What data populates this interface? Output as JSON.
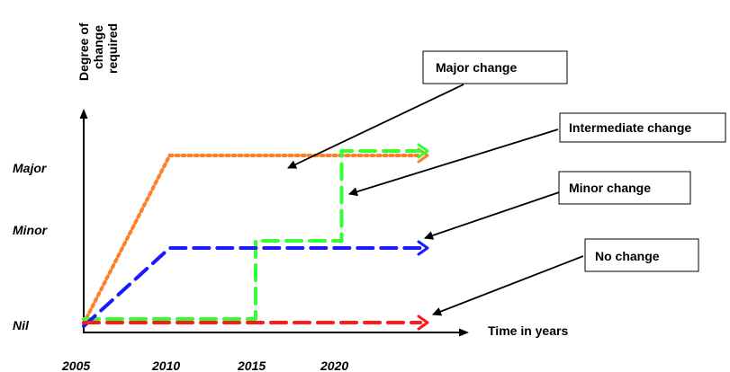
{
  "chart_data": {
    "type": "line",
    "x_axis": {
      "label": "Time in years",
      "ticks": [
        "2005",
        "2010",
        "2015",
        "2020"
      ]
    },
    "y_axis": {
      "label_lines": [
        "Degree of",
        "change",
        "required"
      ],
      "ticks": [
        "Nil",
        "Minor",
        "Major"
      ]
    },
    "series": [
      {
        "name": "Major change",
        "color": "#ff7f27",
        "style": "dotted",
        "points": [
          [
            2005,
            "Nil"
          ],
          [
            2010,
            "Major"
          ],
          [
            2025,
            "Major"
          ]
        ]
      },
      {
        "name": "Intermediate change",
        "color": "#33ff33",
        "style": "dashed",
        "points": [
          [
            2005,
            "Nil"
          ],
          [
            2015,
            "Nil"
          ],
          [
            2015,
            "Minor"
          ],
          [
            2020,
            "Minor"
          ],
          [
            2020,
            "Major"
          ],
          [
            2025,
            "Major"
          ]
        ]
      },
      {
        "name": "Minor change",
        "color": "#1a1aff",
        "style": "dashed",
        "points": [
          [
            2005,
            "Nil"
          ],
          [
            2010,
            "Minor"
          ],
          [
            2025,
            "Minor"
          ]
        ]
      },
      {
        "name": "No change",
        "color": "#ff1a1a",
        "style": "dashed",
        "points": [
          [
            2005,
            "Nil"
          ],
          [
            2025,
            "Nil"
          ]
        ]
      }
    ]
  }
}
